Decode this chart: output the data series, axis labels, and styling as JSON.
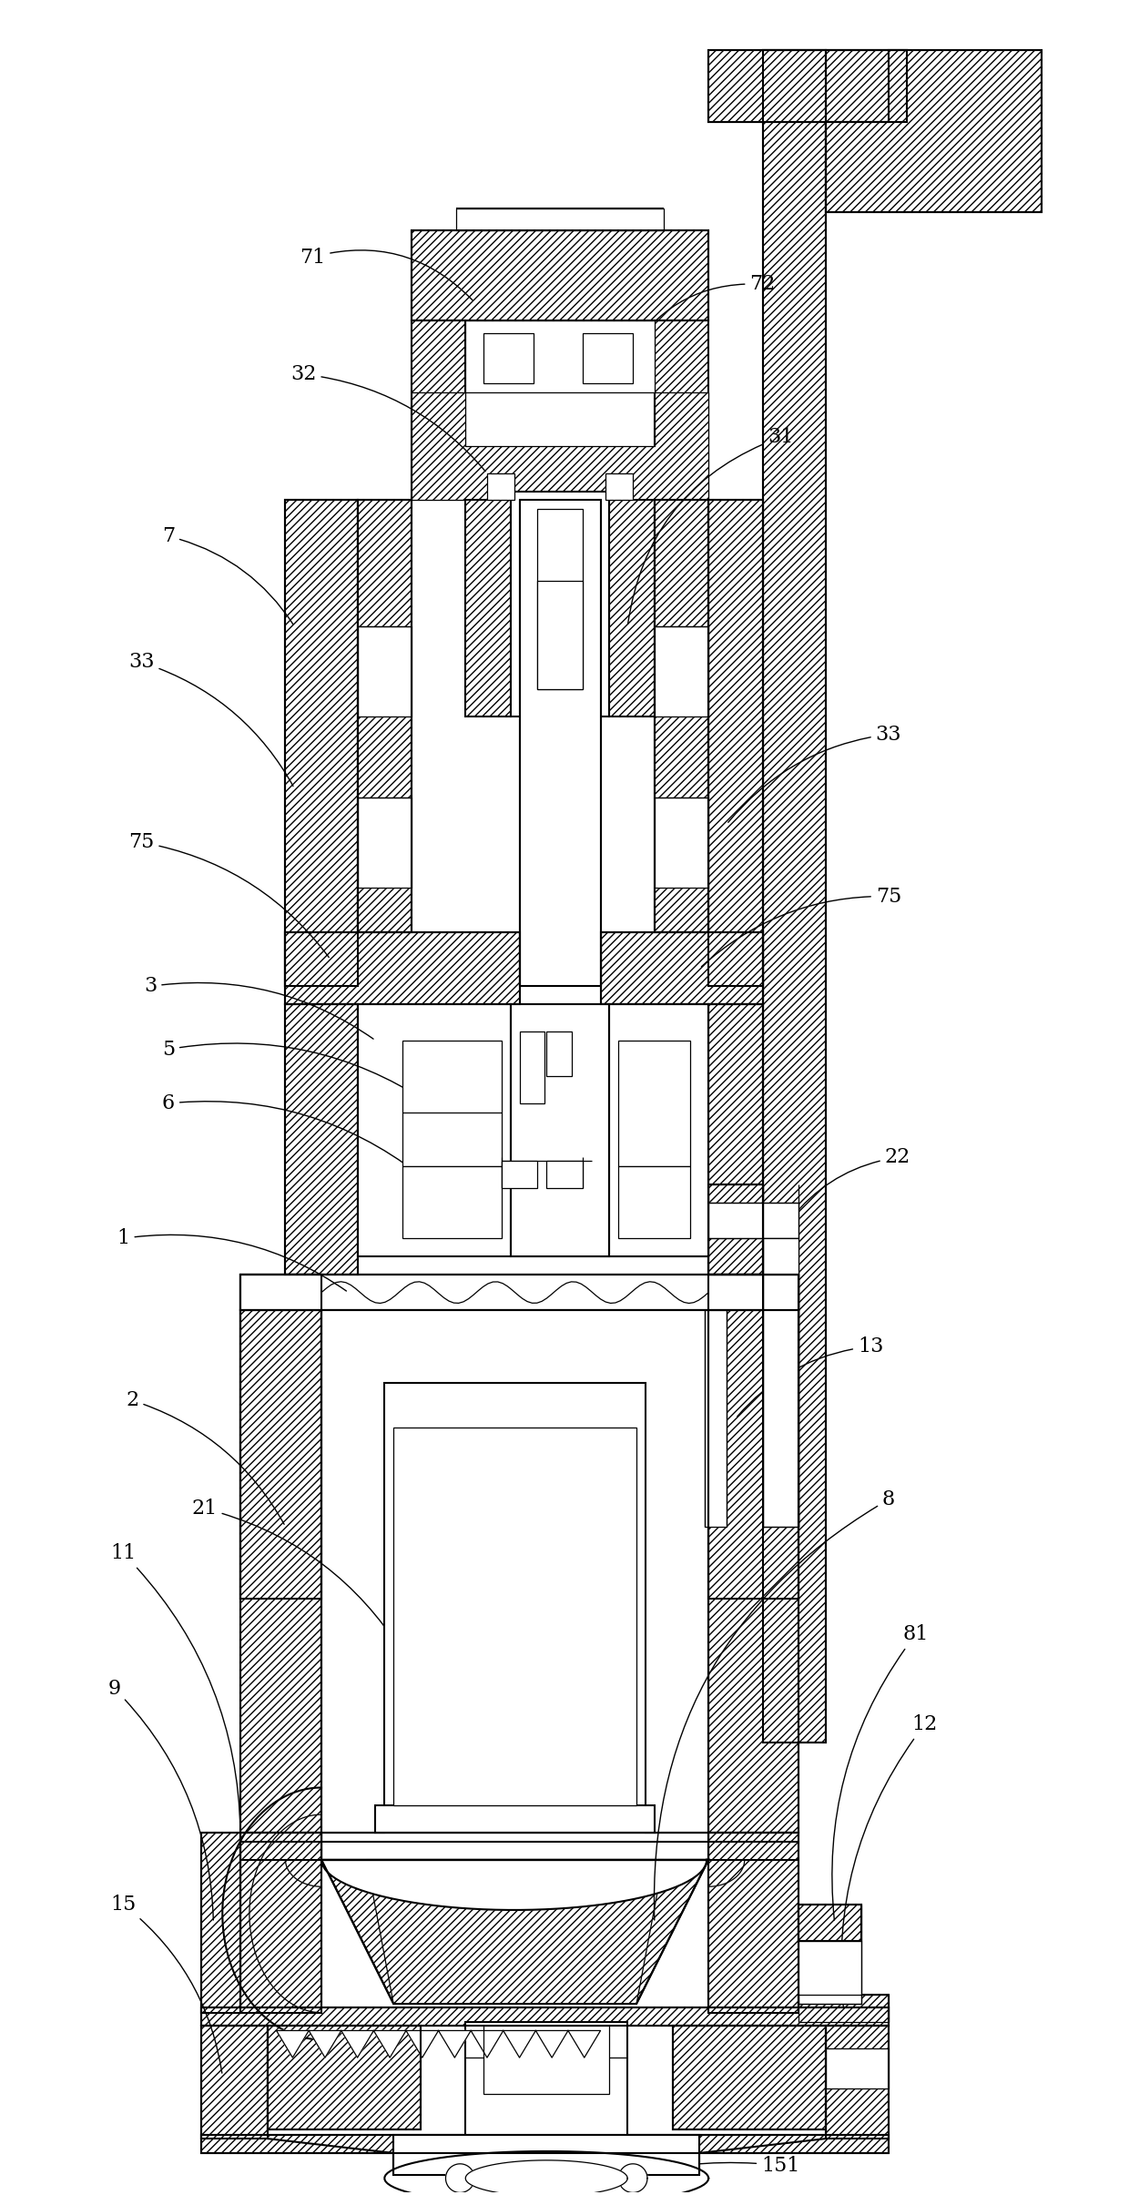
{
  "bg_color": "#ffffff",
  "line_color": "#000000",
  "fig_width": 12.4,
  "fig_height": 24.22,
  "dpi": 100
}
